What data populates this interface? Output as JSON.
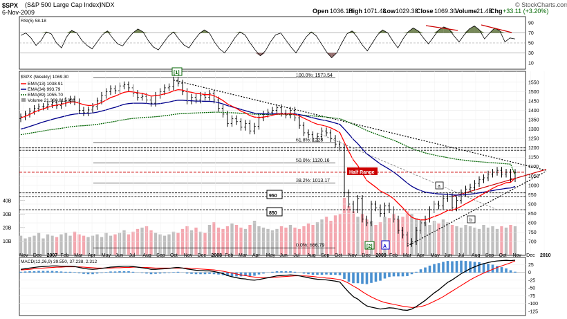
{
  "header": {
    "symbol": "$SPX",
    "name": "(S&P 500 Large Cap Index)",
    "exchange": "INDX",
    "date": "6-Nov-2009",
    "open_label": "Open",
    "open": "1036.18",
    "high_label": "High",
    "high": "1071.48",
    "low_label": "Low",
    "low": "1029.38",
    "close_label": "Close",
    "close": "1069.30",
    "volume_label": "Volume",
    "volume": "21.4B",
    "chg_label": "Chg",
    "chg": "+33.11 (+3.20%)",
    "watermark": "© StockCharts.com"
  },
  "colors": {
    "price_bar": "#000000",
    "ema13": "#ff0000",
    "ema34": "#00008b",
    "ema89": "#006400",
    "volume_up": "#bfbfbf",
    "volume_down": "#f4a8b0",
    "rsi_line": "#000000",
    "rsi_over": "#556b2f",
    "rsi_under": "#7a4a4a",
    "macd_line": "#000000",
    "macd_signal": "#ff0000",
    "macd_hist": "#4a90d0",
    "annotation_red": "#cc0000"
  },
  "chart_data": [
    {
      "type": "line",
      "panel": "rsi",
      "label": "RSI(5) 58.18",
      "y_ticks": [
        "90",
        "70",
        "50",
        "30",
        "10"
      ],
      "ylim": [
        0,
        100
      ],
      "overbought": 70,
      "oversold": 30,
      "values": [
        65,
        70,
        60,
        45,
        55,
        72,
        68,
        50,
        40,
        62,
        75,
        70,
        55,
        45,
        38,
        52,
        66,
        74,
        60,
        48,
        44,
        58,
        70,
        78,
        72,
        55,
        42,
        36,
        50,
        64,
        72,
        58,
        46,
        40,
        55,
        68,
        76,
        70,
        52,
        38,
        30,
        44,
        60,
        72,
        66,
        50,
        36,
        24,
        34,
        52,
        66,
        70,
        56,
        42,
        30,
        46,
        62,
        72,
        64,
        48,
        32,
        20,
        30,
        50,
        68,
        74,
        62,
        46,
        34,
        50,
        66,
        76,
        70,
        54,
        40,
        58,
        72,
        80,
        74,
        60,
        48,
        62,
        76,
        82,
        78,
        64,
        52,
        66,
        78,
        84,
        76,
        58,
        70,
        80,
        74,
        52,
        60,
        58
      ]
    },
    {
      "type": "bar",
      "panel": "price",
      "title": "$SPX (Weekly) 1069.30",
      "legend": [
        {
          "name": "EMA(13) 1038.91",
          "color": "#ff0000"
        },
        {
          "name": "EMA(34) 993.79",
          "color": "#00008b"
        },
        {
          "name": "EMA(89) 1055.70",
          "color": "#006400"
        },
        {
          "name": "Volume 21,360,812,032",
          "color": "#bfbfbf"
        }
      ],
      "y_ticks": [
        "1550",
        "1500",
        "1450",
        "1400",
        "1350",
        "1300",
        "1250",
        "1200",
        "1150",
        "1100",
        "1050",
        "1000",
        "950",
        "900",
        "850",
        "800",
        "750",
        "700"
      ],
      "ylim": [
        660,
        1575
      ],
      "x_ticks": [
        "Nov",
        "Dec",
        "2007",
        "Feb",
        "Mar",
        "Apr",
        "May",
        "Jun",
        "Jul",
        "Aug",
        "Sep",
        "Oct",
        "Nov",
        "Dec",
        "2008",
        "Feb",
        "Mar",
        "Apr",
        "May",
        "Jun",
        "Jul",
        "Aug",
        "Sep",
        "Oct",
        "Nov",
        "Dec",
        "2009",
        "Feb",
        "Mar",
        "Apr",
        "May",
        "Jun",
        "Jul",
        "Aug",
        "Sep",
        "Oct",
        "Nov",
        "Dec",
        "2010"
      ],
      "bold_x_ticks": [
        "2007",
        "2008",
        "2009",
        "2010"
      ],
      "close": [
        1365,
        1380,
        1395,
        1410,
        1418,
        1420,
        1430,
        1440,
        1425,
        1438,
        1452,
        1459,
        1445,
        1400,
        1387,
        1402,
        1420,
        1450,
        1480,
        1500,
        1515,
        1505,
        1530,
        1536,
        1520,
        1490,
        1470,
        1475,
        1455,
        1438,
        1480,
        1500,
        1520,
        1525,
        1561,
        1545,
        1500,
        1450,
        1470,
        1455,
        1480,
        1470,
        1490,
        1455,
        1411,
        1380,
        1330,
        1355,
        1340,
        1310,
        1330,
        1290,
        1315,
        1360,
        1380,
        1390,
        1400,
        1414,
        1385,
        1375,
        1400,
        1360,
        1320,
        1280,
        1270,
        1250,
        1260,
        1290,
        1280,
        1250,
        1220,
        1200,
        960,
        900,
        870,
        930,
        820,
        800,
        900,
        880,
        850,
        890,
        870,
        820,
        760,
        735,
        690,
        700,
        760,
        800,
        820,
        870,
        900,
        890,
        930,
        940,
        880,
        920,
        960,
        980,
        990,
        1010,
        1030,
        1040,
        1060,
        1070,
        1080,
        1060,
        1070,
        1036,
        1069
      ],
      "ema13": [
        1360,
        1368,
        1378,
        1390,
        1400,
        1408,
        1416,
        1424,
        1428,
        1432,
        1438,
        1444,
        1445,
        1438,
        1430,
        1426,
        1426,
        1432,
        1442,
        1455,
        1468,
        1476,
        1486,
        1496,
        1500,
        1498,
        1494,
        1490,
        1484,
        1476,
        1478,
        1482,
        1488,
        1494,
        1504,
        1510,
        1508,
        1500,
        1496,
        1490,
        1488,
        1484,
        1484,
        1478,
        1466,
        1452,
        1434,
        1422,
        1410,
        1396,
        1386,
        1372,
        1364,
        1362,
        1364,
        1368,
        1374,
        1380,
        1381,
        1380,
        1382,
        1378,
        1370,
        1358,
        1347,
        1335,
        1326,
        1321,
        1315,
        1306,
        1295,
        1281,
        1230,
        1180,
        1135,
        1105,
        1064,
        1026,
        1008,
        990,
        970,
        958,
        945,
        928,
        904,
        880,
        852,
        830,
        820,
        816,
        816,
        824,
        834,
        842,
        854,
        866,
        868,
        876,
        888,
        902,
        914,
        928,
        942,
        956,
        970,
        984,
        996,
        1004,
        1014,
        1016,
        1039
      ],
      "ema34": [
        1300,
        1306,
        1314,
        1322,
        1330,
        1338,
        1345,
        1352,
        1358,
        1364,
        1370,
        1376,
        1380,
        1382,
        1383,
        1384,
        1386,
        1390,
        1396,
        1402,
        1410,
        1416,
        1424,
        1432,
        1436,
        1438,
        1438,
        1438,
        1437,
        1434,
        1434,
        1436,
        1440,
        1444,
        1450,
        1454,
        1454,
        1452,
        1451,
        1449,
        1449,
        1448,
        1448,
        1446,
        1441,
        1434,
        1425,
        1418,
        1412,
        1405,
        1398,
        1391,
        1385,
        1383,
        1381,
        1381,
        1381,
        1382,
        1382,
        1381,
        1382,
        1381,
        1377,
        1372,
        1366,
        1360,
        1354,
        1349,
        1345,
        1339,
        1332,
        1325,
        1300,
        1273,
        1245,
        1222,
        1194,
        1168,
        1150,
        1132,
        1114,
        1100,
        1086,
        1070,
        1052,
        1032,
        1012,
        995,
        982,
        972,
        964,
        960,
        957,
        954,
        953,
        952,
        949,
        948,
        949,
        951,
        953,
        956,
        960,
        964,
        968,
        972,
        977,
        980,
        984,
        986,
        994
      ],
      "ema89": [
        1270,
        1274,
        1278,
        1282,
        1286,
        1290,
        1294,
        1298,
        1301,
        1304,
        1308,
        1312,
        1315,
        1317,
        1318,
        1320,
        1322,
        1325,
        1329,
        1333,
        1337,
        1341,
        1346,
        1350,
        1354,
        1357,
        1359,
        1361,
        1363,
        1364,
        1366,
        1368,
        1371,
        1374,
        1378,
        1381,
        1383,
        1384,
        1385,
        1386,
        1387,
        1388,
        1389,
        1390,
        1390,
        1389,
        1388,
        1387,
        1386,
        1384,
        1383,
        1381,
        1379,
        1378,
        1378,
        1378,
        1378,
        1378,
        1378,
        1378,
        1378,
        1377,
        1376,
        1374,
        1372,
        1370,
        1368,
        1366,
        1364,
        1361,
        1358,
        1355,
        1346,
        1336,
        1325,
        1316,
        1304,
        1292,
        1283,
        1274,
        1265,
        1257,
        1249,
        1240,
        1230,
        1219,
        1207,
        1197,
        1188,
        1180,
        1173,
        1167,
        1162,
        1156,
        1152,
        1148,
        1143,
        1139,
        1136,
        1133,
        1130,
        1128,
        1126,
        1124,
        1122,
        1120,
        1119,
        1117,
        1115,
        1113,
        1056
      ],
      "levels": [
        {
          "label": "100.0%: 1573.54",
          "value": 1573.54
        },
        {
          "label": "61.8%: 1228",
          "value": 1228
        },
        {
          "label": "50.0%: 1120.16",
          "value": 1120.16
        },
        {
          "label": "38.2%: 1013.17",
          "value": 1013.17
        },
        {
          "label": "0.0%: 666.79",
          "value": 666.79
        }
      ],
      "horizontal_lines": [
        1200,
        1187,
        1070,
        960,
        940,
        870
      ],
      "annotations": [
        "[1]",
        "[2]",
        "A",
        "a",
        "b",
        "Half Range",
        "950",
        "850"
      ]
    },
    {
      "type": "bar",
      "panel": "volume",
      "y_ticks": [
        "40B",
        "30B",
        "20B",
        "10B"
      ],
      "ylim": [
        0,
        45
      ],
      "values": [
        14,
        12,
        13,
        14,
        16,
        12,
        15,
        14,
        13,
        15,
        16,
        14,
        17,
        15,
        14,
        13,
        14,
        15,
        13,
        16,
        14,
        15,
        16,
        18,
        15,
        17,
        19,
        20,
        21,
        18,
        16,
        15,
        14,
        15,
        17,
        16,
        19,
        21,
        18,
        20,
        17,
        16,
        22,
        24,
        20,
        19,
        21,
        23,
        22,
        20,
        19,
        22,
        25,
        21,
        20,
        19,
        18,
        19,
        21,
        20,
        22,
        20,
        19,
        21,
        23,
        22,
        24,
        26,
        28,
        25,
        29,
        30,
        42,
        36,
        32,
        28,
        30,
        26,
        25,
        22,
        24,
        28,
        27,
        30,
        26,
        28,
        32,
        30,
        27,
        26,
        24,
        22,
        25,
        23,
        26,
        24,
        22,
        21,
        20,
        22,
        21,
        20,
        19,
        22,
        20,
        21,
        19,
        21,
        20,
        22,
        21
      ]
    },
    {
      "type": "line",
      "panel": "macd",
      "label": "MACD(12,26,9) 39.550, 37.238, 2.312",
      "y_ticks": [
        "25",
        "0",
        "-25",
        "-50",
        "-75",
        "-100",
        "-125"
      ],
      "ylim": [
        -130,
        35
      ],
      "macd": [
        10,
        12,
        14,
        16,
        18,
        19,
        20,
        21,
        21,
        20,
        20,
        20,
        19,
        16,
        13,
        11,
        10,
        11,
        13,
        15,
        17,
        18,
        19,
        20,
        20,
        19,
        17,
        15,
        13,
        10,
        10,
        11,
        12,
        13,
        15,
        16,
        14,
        11,
        9,
        7,
        6,
        5,
        5,
        3,
        0,
        -4,
        -10,
        -14,
        -17,
        -20,
        -21,
        -24,
        -25,
        -23,
        -20,
        -17,
        -14,
        -11,
        -10,
        -9,
        -8,
        -9,
        -11,
        -14,
        -17,
        -20,
        -22,
        -23,
        -24,
        -26,
        -28,
        -31,
        -48,
        -64,
        -78,
        -86,
        -98,
        -108,
        -112,
        -115,
        -118,
        -116,
        -114,
        -115,
        -118,
        -121,
        -122,
        -118,
        -110,
        -100,
        -90,
        -78,
        -66,
        -56,
        -44,
        -32,
        -24,
        -14,
        -4,
        4,
        12,
        18,
        24,
        28,
        32,
        35,
        37,
        38,
        39,
        38,
        39.55
      ],
      "signal": [
        8,
        9,
        10,
        12,
        13,
        14,
        15,
        16,
        17,
        17,
        18,
        18,
        18,
        18,
        17,
        16,
        15,
        14,
        14,
        14,
        14,
        15,
        15,
        16,
        16,
        17,
        17,
        16,
        16,
        15,
        14,
        14,
        14,
        14,
        14,
        14,
        14,
        14,
        13,
        12,
        11,
        10,
        9,
        8,
        6,
        4,
        1,
        -2,
        -5,
        -8,
        -10,
        -13,
        -15,
        -17,
        -17,
        -17,
        -16,
        -15,
        -14,
        -13,
        -12,
        -11,
        -11,
        -11,
        -12,
        -13,
        -15,
        -16,
        -18,
        -19,
        -21,
        -23,
        -28,
        -35,
        -44,
        -52,
        -62,
        -71,
        -79,
        -86,
        -92,
        -97,
        -100,
        -103,
        -106,
        -109,
        -111,
        -113,
        -112,
        -110,
        -106,
        -100,
        -93,
        -86,
        -78,
        -69,
        -60,
        -51,
        -42,
        -33,
        -24,
        -16,
        -9,
        -2,
        4,
        10,
        16,
        21,
        26,
        31,
        37.238
      ]
    }
  ]
}
